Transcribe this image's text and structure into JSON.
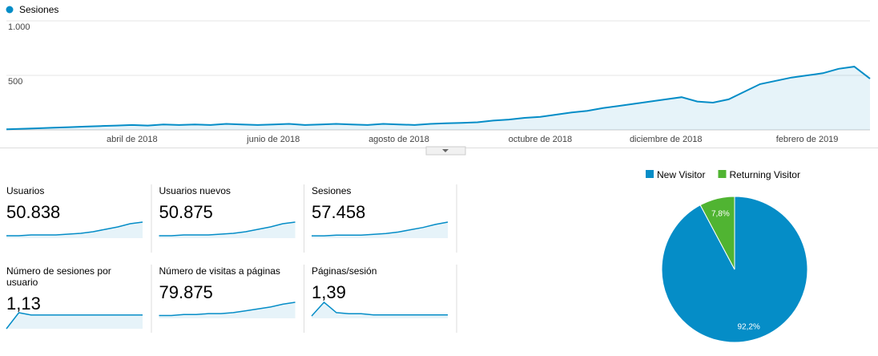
{
  "chart_data": [
    {
      "type": "line",
      "series": [
        {
          "name": "Sesiones",
          "color": "#058dc7",
          "values": [
            5,
            10,
            15,
            20,
            25,
            30,
            35,
            40,
            45,
            40,
            50,
            45,
            50,
            45,
            55,
            50,
            45,
            50,
            55,
            45,
            50,
            55,
            50,
            45,
            55,
            50,
            45,
            55,
            60,
            65,
            70,
            85,
            95,
            110,
            120,
            140,
            160,
            175,
            200,
            220,
            240,
            260,
            280,
            300,
            260,
            250,
            280,
            350,
            420,
            450,
            480,
            500,
            520,
            560,
            580,
            470
          ]
        }
      ],
      "categories": [
        null,
        null,
        null,
        null,
        null,
        null,
        null,
        null,
        "abril de 2018",
        null,
        null,
        null,
        null,
        null,
        null,
        null,
        null,
        "junio de 2018",
        null,
        null,
        null,
        null,
        null,
        null,
        null,
        "agosto de 2018",
        null,
        null,
        null,
        null,
        null,
        null,
        null,
        null,
        "octubre de 2018",
        null,
        null,
        null,
        null,
        null,
        null,
        null,
        "diciembre de 2018",
        null,
        null,
        null,
        null,
        null,
        null,
        null,
        null,
        "febrero de 2019",
        null,
        null,
        null,
        null
      ],
      "ylim": [
        0,
        1000
      ],
      "yticks": [
        500,
        {
          "value": 1000,
          "label": "1.000"
        }
      ],
      "grid": true
    },
    {
      "type": "pie",
      "categories": [
        "New Visitor",
        "Returning Visitor"
      ],
      "values": [
        92.2,
        7.8
      ],
      "value_labels": [
        "92,2%",
        "7,8%"
      ],
      "colors": [
        "#058dc7",
        "#50b432"
      ]
    }
  ],
  "metrics": [
    {
      "label": "Usuarios",
      "value": "50.838",
      "spark": [
        3,
        3,
        4,
        4,
        4,
        5,
        6,
        8,
        11,
        14,
        18,
        20
      ]
    },
    {
      "label": "Usuarios nuevos",
      "value": "50.875",
      "spark": [
        3,
        3,
        4,
        4,
        4,
        5,
        6,
        8,
        11,
        14,
        18,
        20
      ]
    },
    {
      "label": "Sesiones",
      "value": "57.458",
      "spark": [
        3,
        3,
        4,
        4,
        4,
        5,
        6,
        8,
        11,
        14,
        18,
        21
      ]
    },
    {
      "label": "Número de sesiones por usuario",
      "value": "1,13",
      "spark": [
        0,
        14,
        12,
        12,
        12,
        12,
        12,
        12,
        12,
        12,
        12,
        12
      ]
    },
    {
      "label": "Número de visitas a páginas",
      "value": "79.875",
      "spark": [
        3,
        3,
        4,
        4,
        5,
        5,
        6,
        8,
        10,
        12,
        15,
        17
      ]
    },
    {
      "label": "Páginas/sesión",
      "value": "1,39",
      "spark": [
        2,
        14,
        5,
        4,
        4,
        3,
        3,
        3,
        3,
        3,
        3,
        3
      ]
    }
  ]
}
